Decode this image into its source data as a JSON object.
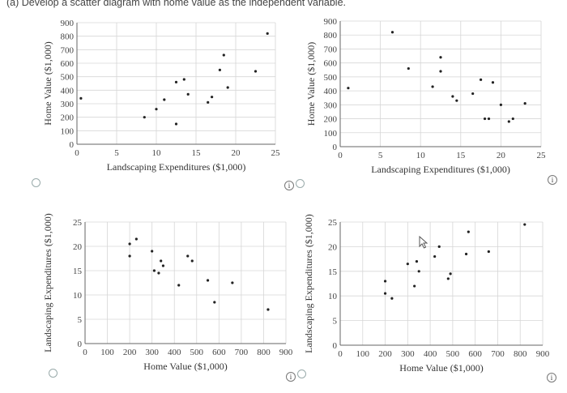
{
  "question": "(a) Develop a scatter diagram with home value as the independent variable.",
  "info_symbol": "i",
  "chart_data": [
    {
      "type": "scatter",
      "xlabel": "Landscaping Expenditures ($1,000)",
      "ylabel": "Home Value ($1,000)",
      "xlim": [
        0,
        25
      ],
      "ylim": [
        0,
        900
      ],
      "xticks": [
        0,
        5,
        10,
        15,
        20,
        25
      ],
      "yticks": [
        0,
        100,
        200,
        300,
        400,
        500,
        600,
        700,
        800,
        900
      ],
      "grid": true,
      "points": [
        {
          "x": 0.5,
          "y": 340
        },
        {
          "x": 8.5,
          "y": 200
        },
        {
          "x": 10,
          "y": 260
        },
        {
          "x": 11,
          "y": 330
        },
        {
          "x": 12.5,
          "y": 150
        },
        {
          "x": 12.5,
          "y": 460
        },
        {
          "x": 13.5,
          "y": 480
        },
        {
          "x": 14,
          "y": 370
        },
        {
          "x": 16.5,
          "y": 310
        },
        {
          "x": 17,
          "y": 350
        },
        {
          "x": 18,
          "y": 550
        },
        {
          "x": 18.5,
          "y": 660
        },
        {
          "x": 19,
          "y": 420
        },
        {
          "x": 22.5,
          "y": 540
        },
        {
          "x": 24,
          "y": 820
        }
      ]
    },
    {
      "type": "scatter",
      "xlabel": "Landscaping Expenditures ($1,000)",
      "ylabel": "Home Value ($1,000)",
      "xlim": [
        0,
        25
      ],
      "ylim": [
        0,
        900
      ],
      "xticks": [
        0,
        5,
        10,
        15,
        20,
        25
      ],
      "yticks": [
        0,
        100,
        200,
        300,
        400,
        500,
        600,
        700,
        800,
        900
      ],
      "grid": true,
      "points": [
        {
          "x": 1,
          "y": 420
        },
        {
          "x": 6.5,
          "y": 820
        },
        {
          "x": 8.5,
          "y": 560
        },
        {
          "x": 11.5,
          "y": 430
        },
        {
          "x": 12.5,
          "y": 540
        },
        {
          "x": 12.5,
          "y": 640
        },
        {
          "x": 14,
          "y": 360
        },
        {
          "x": 14.5,
          "y": 330
        },
        {
          "x": 16.5,
          "y": 380
        },
        {
          "x": 17.5,
          "y": 480
        },
        {
          "x": 18,
          "y": 200
        },
        {
          "x": 18.5,
          "y": 200
        },
        {
          "x": 19,
          "y": 460
        },
        {
          "x": 20,
          "y": 300
        },
        {
          "x": 21,
          "y": 180
        },
        {
          "x": 21.5,
          "y": 200
        },
        {
          "x": 23,
          "y": 310
        }
      ]
    },
    {
      "type": "scatter",
      "xlabel": "Home Value ($1,000)",
      "ylabel": "Landscaping Expenditures ($1,000)",
      "xlim": [
        0,
        900
      ],
      "ylim": [
        0,
        25
      ],
      "xticks": [
        0,
        100,
        200,
        300,
        400,
        500,
        600,
        700,
        800,
        900
      ],
      "yticks": [
        0,
        5,
        10,
        15,
        20,
        25
      ],
      "grid": true,
      "points": [
        {
          "x": 200,
          "y": 18
        },
        {
          "x": 200,
          "y": 20.5
        },
        {
          "x": 230,
          "y": 21.5
        },
        {
          "x": 300,
          "y": 19
        },
        {
          "x": 310,
          "y": 15
        },
        {
          "x": 330,
          "y": 14.5
        },
        {
          "x": 340,
          "y": 17
        },
        {
          "x": 350,
          "y": 16
        },
        {
          "x": 420,
          "y": 12
        },
        {
          "x": 460,
          "y": 18
        },
        {
          "x": 480,
          "y": 17
        },
        {
          "x": 550,
          "y": 13
        },
        {
          "x": 580,
          "y": 8.5
        },
        {
          "x": 660,
          "y": 12.5
        },
        {
          "x": 820,
          "y": 7
        }
      ]
    },
    {
      "type": "scatter",
      "xlabel": "Home Value ($1,000)",
      "ylabel": "Landscaping Expenditures ($1,000)",
      "xlim": [
        0,
        900
      ],
      "ylim": [
        0,
        25
      ],
      "xticks": [
        0,
        100,
        200,
        300,
        400,
        500,
        600,
        700,
        800,
        900
      ],
      "yticks": [
        0,
        5,
        10,
        15,
        20,
        25
      ],
      "grid": true,
      "points": [
        {
          "x": 200,
          "y": 13
        },
        {
          "x": 200,
          "y": 10.5
        },
        {
          "x": 230,
          "y": 9.5
        },
        {
          "x": 300,
          "y": 16.5
        },
        {
          "x": 330,
          "y": 12
        },
        {
          "x": 340,
          "y": 17
        },
        {
          "x": 350,
          "y": 15
        },
        {
          "x": 420,
          "y": 18
        },
        {
          "x": 440,
          "y": 20
        },
        {
          "x": 480,
          "y": 13.5
        },
        {
          "x": 490,
          "y": 14.5
        },
        {
          "x": 560,
          "y": 18.5
        },
        {
          "x": 570,
          "y": 23
        },
        {
          "x": 660,
          "y": 19
        },
        {
          "x": 820,
          "y": 24.5
        }
      ]
    }
  ]
}
